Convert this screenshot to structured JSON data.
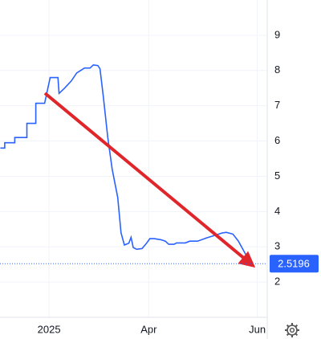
{
  "chart_data": {
    "type": "line",
    "x": [
      -44,
      -40,
      -40,
      -31,
      -31,
      -20,
      -20,
      -12,
      -12,
      -4,
      1,
      8,
      9,
      14,
      20,
      25,
      32,
      37,
      40,
      44,
      46,
      49,
      53,
      57,
      62,
      65,
      68,
      72,
      74,
      76,
      79,
      84,
      88,
      91,
      95,
      101,
      105,
      108,
      113,
      115,
      123,
      127,
      134,
      142,
      149,
      156,
      160,
      166,
      171,
      175,
      179,
      181
    ],
    "series": [
      {
        "color": "#2962ff",
        "values": [
          5.8,
          5.8,
          5.95,
          5.95,
          6.1,
          6.1,
          6.5,
          6.5,
          7.07,
          7.07,
          7.8,
          7.8,
          7.35,
          7.5,
          7.7,
          7.93,
          8.07,
          8.07,
          8.16,
          8.14,
          8.05,
          7.25,
          6.1,
          5.2,
          4.4,
          3.4,
          3.05,
          3.1,
          3.27,
          2.98,
          2.93,
          2.95,
          3.1,
          3.23,
          3.23,
          3.2,
          3.16,
          3.07,
          3.07,
          3.11,
          3.11,
          3.16,
          3.16,
          3.25,
          3.32,
          3.39,
          3.41,
          3.36,
          3.16,
          2.93,
          2.7,
          2.5196
        ]
      }
    ],
    "xlim": [
      -44.3,
      197
    ],
    "xticks": [
      {
        "value": 0,
        "label": "2025"
      },
      {
        "value": 90,
        "label": "Apr"
      },
      {
        "value": 188,
        "label": "Jun"
      }
    ],
    "ylim": [
      1,
      10
    ],
    "yticks": [
      2,
      3,
      4,
      5,
      6,
      7,
      8,
      9
    ],
    "grid": true
  }
}
